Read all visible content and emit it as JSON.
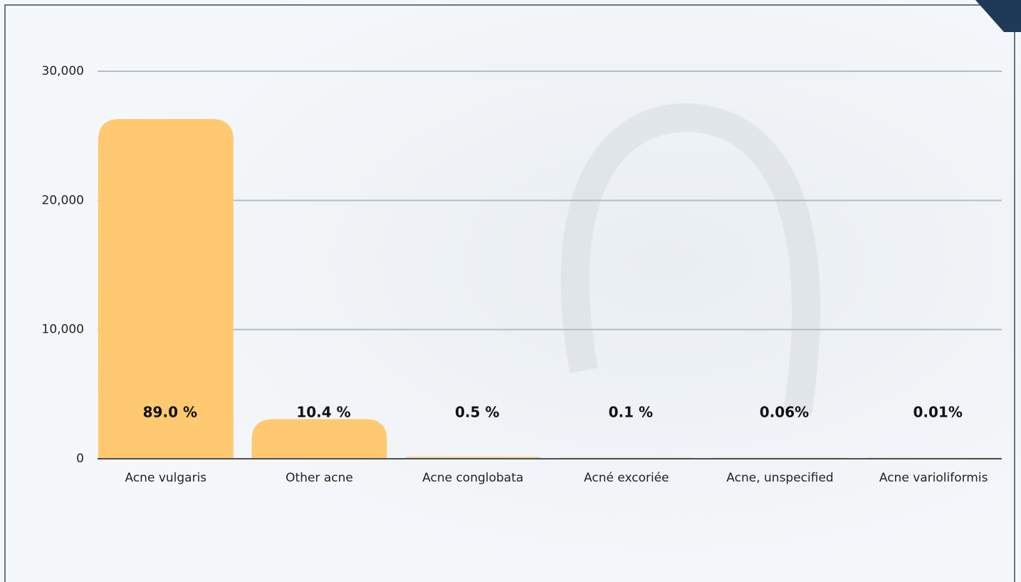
{
  "chart_data": {
    "type": "bar",
    "categories": [
      "Acne vulgaris",
      "Other acne",
      "Acne conglobata",
      "Acné excoriée",
      "Acne, unspecified",
      "Acne varioliformis"
    ],
    "values": [
      26300,
      3070,
      148,
      30,
      18,
      3
    ],
    "annotations": [
      "89.0 %",
      "10.4 %",
      "0.5 %",
      "0.1 %",
      "0.06%",
      "0.01%"
    ],
    "color": "#fec970",
    "ylim": [
      0,
      30000
    ],
    "yticks": [
      0,
      {
        "value": 10000,
        "label": "10,000"
      },
      {
        "value": 20000,
        "label": "20,000"
      },
      {
        "value": 30000,
        "label": "30,000"
      }
    ],
    "grid": true
  }
}
